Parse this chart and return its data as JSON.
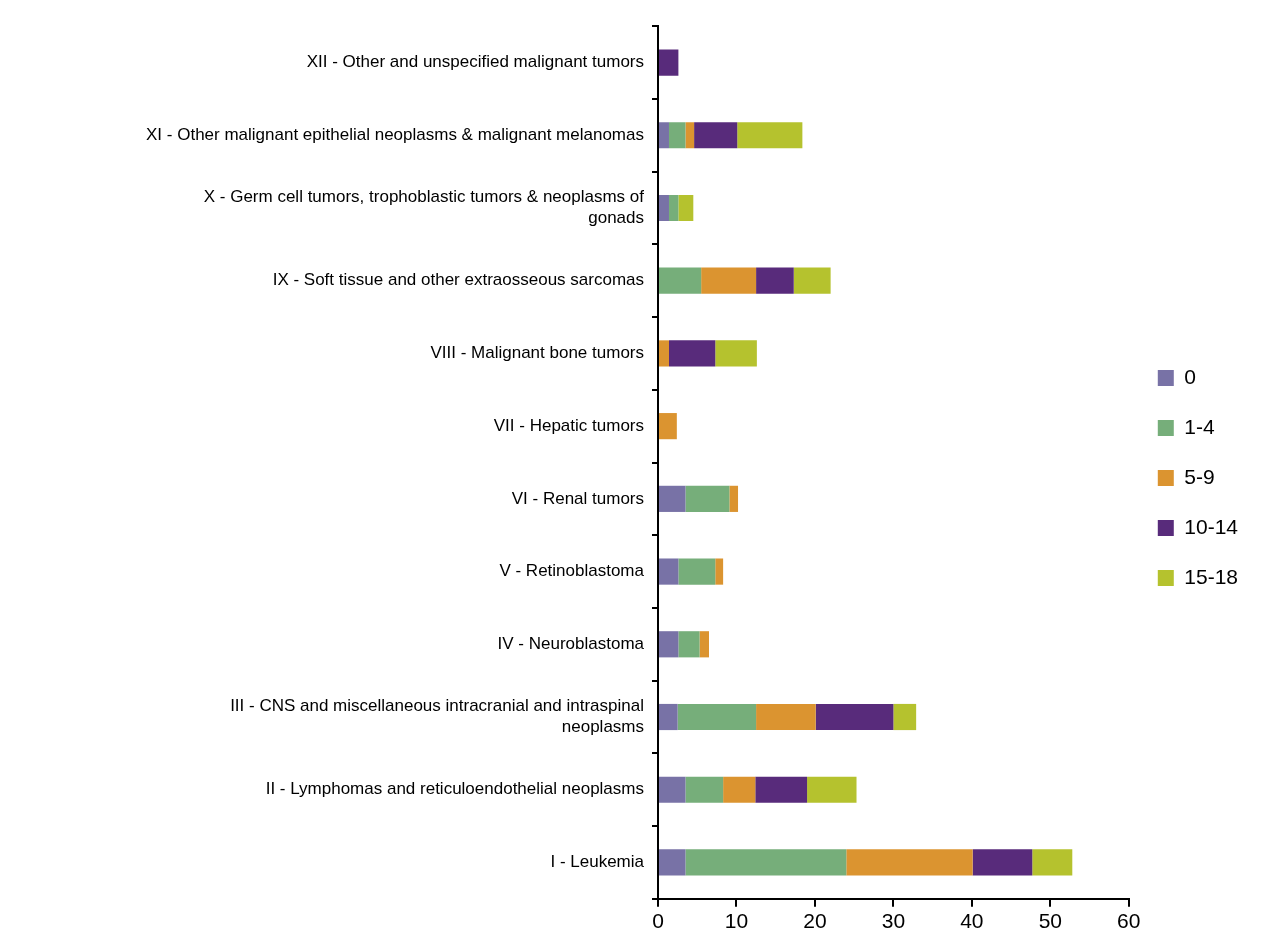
{
  "chart_data": {
    "type": "bar",
    "orientation": "horizontal",
    "stacked": true,
    "categories": [
      "XII - Other and unspecified malignant tumors",
      "XI - Other malignant epithelial neoplasms & malignant melanomas",
      "X - Germ cell tumors, trophoblastic tumors & neoplasms of gonads",
      "IX - Soft tissue and other extraosseous sarcomas",
      "VIII - Malignant bone tumors",
      "VII - Hepatic tumors",
      "VI - Renal tumors",
      "V - Retinoblastoma",
      "IV - Neuroblastoma",
      "III - CNS and miscellaneous intracranial and intraspinal neoplasms",
      "II - Lymphomas and reticuloendothelial neoplasms",
      "I - Leukemia"
    ],
    "series": [
      {
        "name": "0",
        "color": "#7872a6",
        "values": [
          null,
          1.4,
          1.4,
          null,
          null,
          null,
          3.5,
          2.6,
          2.6,
          2.5,
          3.5,
          3.5
        ]
      },
      {
        "name": "1-4",
        "color": "#76ae7a",
        "values": [
          null,
          2.1,
          1.2,
          5.5,
          null,
          null,
          5.6,
          4.7,
          2.7,
          10.0,
          4.8,
          20.5
        ]
      },
      {
        "name": "5-9",
        "color": "#db9430",
        "values": [
          null,
          1.1,
          null,
          7.0,
          1.4,
          2.4,
          1.1,
          1.0,
          1.2,
          7.6,
          4.1,
          16.1
        ]
      },
      {
        "name": "10-14",
        "color": "#582b7b",
        "values": [
          2.6,
          5.5,
          null,
          4.8,
          5.9,
          null,
          null,
          null,
          null,
          9.9,
          6.6,
          7.6
        ]
      },
      {
        "name": "15-18",
        "color": "#b5c22e",
        "values": [
          null,
          8.3,
          1.9,
          4.7,
          5.3,
          null,
          null,
          null,
          null,
          2.9,
          6.3,
          5.1
        ]
      }
    ],
    "xlim": [
      0,
      60
    ],
    "xticks": [
      0,
      10,
      20,
      30,
      40,
      50,
      60
    ],
    "grid": false,
    "legend": "right"
  }
}
